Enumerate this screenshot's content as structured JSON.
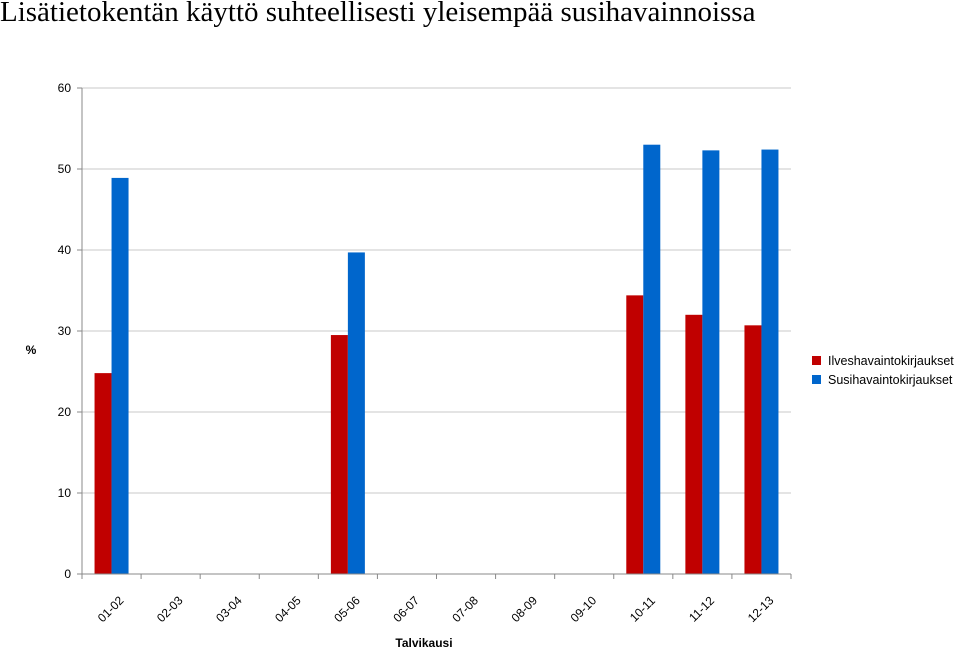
{
  "title": "Lisätietokentän käyttö suhteellisesti yleisempää susihavainnoissa",
  "chart_data": {
    "type": "bar",
    "title": "Lisätietokentän käyttö suhteellisesti yleisempää susihavainnoissa",
    "xlabel": "Talvikausi",
    "ylabel": "%",
    "ylim": [
      0,
      60
    ],
    "yticks": [
      0,
      10,
      20,
      30,
      40,
      50,
      60
    ],
    "categories": [
      "01-02",
      "02-03",
      "03-04",
      "04-05",
      "05-06",
      "06-07",
      "07-08",
      "08-09",
      "09-10",
      "10-11",
      "11-12",
      "12-13"
    ],
    "series": [
      {
        "name": "Ilveshavaintokirjaukset",
        "color": "#c00000",
        "values": [
          24.8,
          null,
          null,
          null,
          29.5,
          null,
          null,
          null,
          null,
          34.4,
          32.0,
          30.7
        ]
      },
      {
        "name": "Susihavaintokirjaukset",
        "color": "#0066cc",
        "values": [
          48.9,
          null,
          null,
          null,
          39.7,
          null,
          null,
          null,
          null,
          53.0,
          52.3,
          52.4
        ]
      }
    ],
    "legend_position": "right",
    "grid": true
  }
}
